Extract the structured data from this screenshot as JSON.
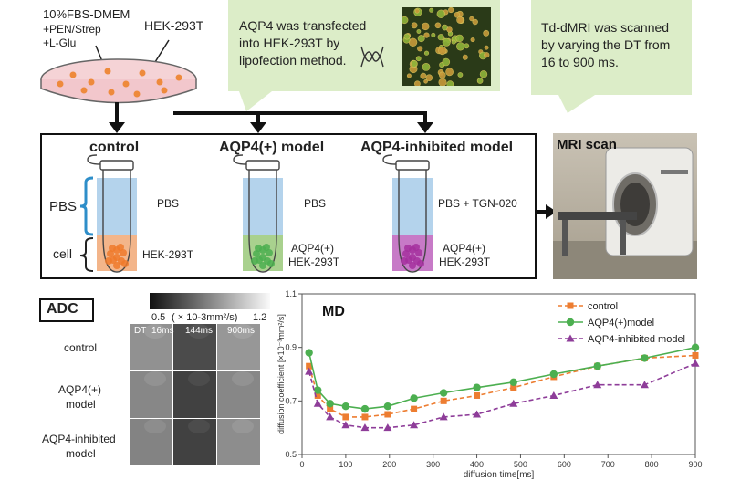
{
  "medium": {
    "line1": "10%FBS-DMEM",
    "line2": "+PEN/Strep",
    "line3": "+L-Glu",
    "cell_line": "HEK-293T"
  },
  "callouts": {
    "transfection": [
      "AQP4 was transfected",
      "into HEK-293T by",
      "lipofection method."
    ],
    "scan": [
      "Td-dMRI was scanned",
      "by varying the DT from",
      "16 to 900 ms."
    ]
  },
  "conditions": [
    {
      "title": "control",
      "top": "PBS",
      "bottom1": "HEK-293T",
      "bottom2": "",
      "cell_color": "#f3b58a"
    },
    {
      "title": "AQP4(+) model",
      "top": "PBS",
      "bottom1": "AQP4(+)",
      "bottom2": "HEK-293T",
      "cell_color": "#a9d18e"
    },
    {
      "title": "AQP4-inhibited model",
      "top": "PBS + TGN-020",
      "bottom1": "AQP4(+)",
      "bottom2": "HEK-293T",
      "cell_color": "#c77ac7"
    }
  ],
  "tube_labels": {
    "pbs": "PBS",
    "cell": "cell"
  },
  "colors": {
    "pbs": "#b4d3ec",
    "callout": "#dcedc8",
    "brace_blue": "#2e8ec9"
  },
  "mri_label": "MRI scan",
  "adc": {
    "label": "ADC",
    "scale_min": "0.5",
    "scale_unit": "( × 10-3mm²/s)",
    "scale_max": "1.2",
    "dt_prefix": "DT",
    "columns": [
      "16ms",
      "144ms",
      "900ms"
    ],
    "rows": [
      "control",
      "AQP4(+)\nmodel",
      "AQP4-inhibited\nmodel"
    ],
    "row_lines": [
      [
        "control"
      ],
      [
        "AQP4(+)",
        "model"
      ],
      [
        "AQP4-inhibited",
        "model"
      ]
    ],
    "intensity": [
      [
        0.55,
        0.2,
        0.58
      ],
      [
        0.5,
        0.15,
        0.5
      ],
      [
        0.48,
        0.15,
        0.53
      ]
    ]
  },
  "chart_data": {
    "type": "line",
    "title": "MD",
    "xlabel": "diffusion time[ms]",
    "ylabel": "diffusion coefficient [×10⁻³mm²/s]",
    "xlim": [
      0,
      900
    ],
    "ylim": [
      0.5,
      1.1
    ],
    "xticks": [
      0,
      100,
      200,
      300,
      400,
      500,
      600,
      700,
      800,
      900
    ],
    "yticks": [
      0.5,
      0.7,
      0.9,
      1.1
    ],
    "legend_position": "top-right",
    "x": [
      16,
      36,
      64,
      100,
      144,
      196,
      256,
      324,
      400,
      484,
      576,
      676,
      784,
      900
    ],
    "series": [
      {
        "name": "control",
        "color": "#ed7d31",
        "dash": "5,3",
        "marker": "square",
        "values": [
          0.83,
          0.72,
          0.67,
          0.64,
          0.64,
          0.65,
          0.67,
          0.7,
          0.72,
          0.75,
          0.79,
          0.83,
          0.86,
          0.87
        ]
      },
      {
        "name": "AQP4(+)model",
        "color": "#4caf50",
        "dash": "",
        "marker": "circle",
        "values": [
          0.88,
          0.74,
          0.69,
          0.68,
          0.67,
          0.68,
          0.71,
          0.73,
          0.75,
          0.77,
          0.8,
          0.83,
          0.86,
          0.9
        ]
      },
      {
        "name": "AQP4-inhibited model",
        "color": "#8e3d99",
        "dash": "5,3",
        "marker": "triangle",
        "values": [
          0.81,
          0.69,
          0.64,
          0.61,
          0.6,
          0.6,
          0.61,
          0.64,
          0.65,
          0.69,
          0.72,
          0.76,
          0.76,
          0.84
        ]
      }
    ]
  }
}
